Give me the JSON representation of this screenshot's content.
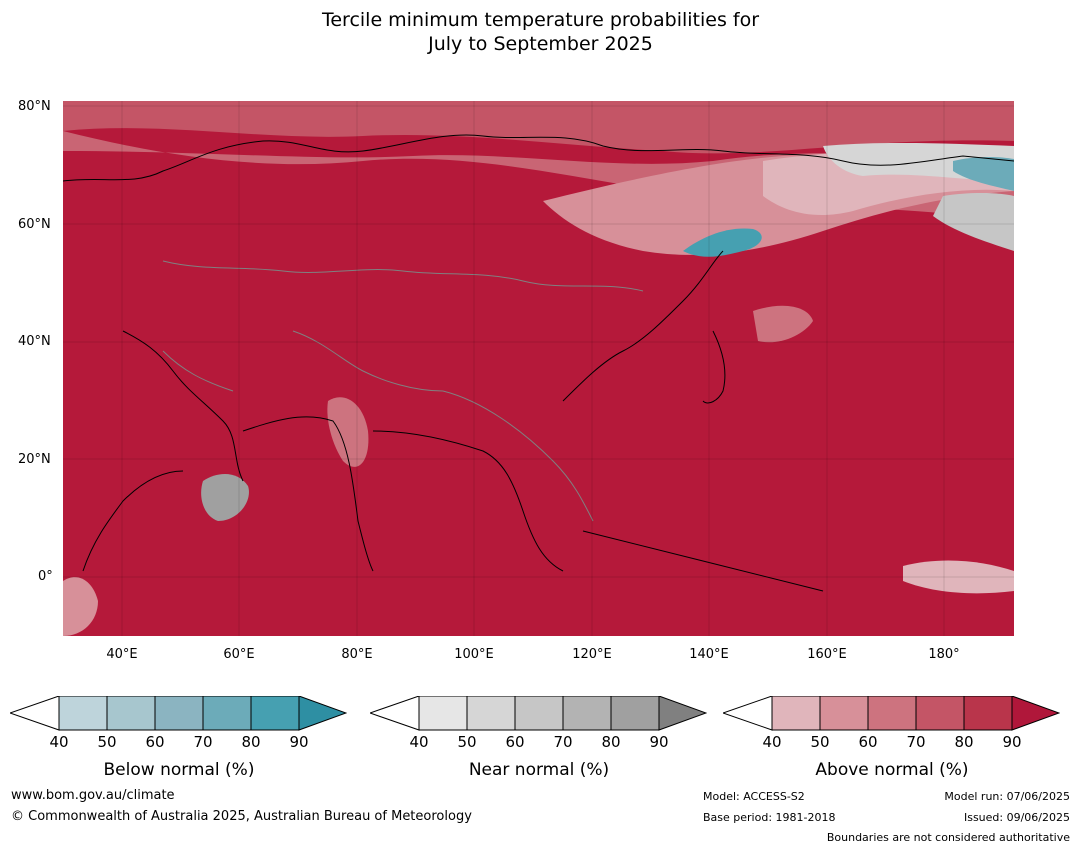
{
  "title_line1": "Tercile minimum temperature probabilities for",
  "title_line2": "July to September 2025",
  "map": {
    "lat_labels": [
      "80°N",
      "60°N",
      "40°N",
      "20°N",
      "0°"
    ],
    "lon_labels": [
      "40°E",
      "60°E",
      "80°E",
      "100°E",
      "120°E",
      "140°E",
      "160°E",
      "180°"
    ],
    "dominant_color": "#b5193a"
  },
  "colorbars": [
    {
      "name": "below",
      "title": "Below normal (%)",
      "ticks": [
        "40",
        "50",
        "60",
        "70",
        "80",
        "90"
      ],
      "colors": [
        "#ffffff",
        "#bed4db",
        "#a7c6ce",
        "#8bb4c1",
        "#6cabb9",
        "#46a0b1",
        "#2e8fa3"
      ]
    },
    {
      "name": "near",
      "title": "Near normal (%)",
      "ticks": [
        "40",
        "50",
        "60",
        "70",
        "80",
        "90"
      ],
      "colors": [
        "#ffffff",
        "#e6e6e6",
        "#d6d6d6",
        "#c6c6c6",
        "#b3b3b3",
        "#a0a0a0",
        "#808080"
      ]
    },
    {
      "name": "above",
      "title": "Above normal (%)",
      "ticks": [
        "40",
        "50",
        "60",
        "70",
        "80",
        "90"
      ],
      "colors": [
        "#ffffff",
        "#e0b5bb",
        "#d79099",
        "#cd737f",
        "#c45566",
        "#b9354b",
        "#b0173a"
      ]
    }
  ],
  "footer": {
    "website": "www.bom.gov.au/climate",
    "copyright": "© Commonwealth of Australia 2025, Australian Bureau of Meteorology",
    "model": "Model: ACCESS-S2",
    "base_period": "Base period: 1981-2018",
    "model_run": "Model run: 07/06/2025",
    "issued": "Issued: 09/06/2025",
    "boundaries_note": "Boundaries are not considered authoritative"
  }
}
